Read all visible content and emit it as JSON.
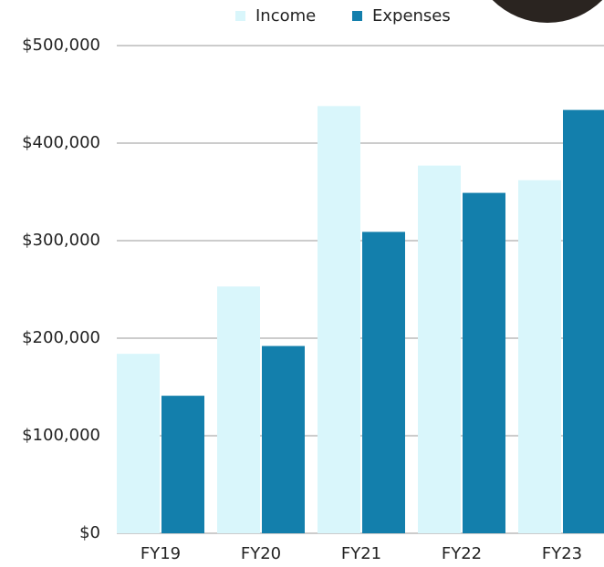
{
  "chart_data": {
    "type": "bar",
    "categories": [
      "FY19",
      "FY20",
      "FY21",
      "FY22",
      "FY23"
    ],
    "series": [
      {
        "name": "Income",
        "color": "#d9f6fb",
        "values": [
          184000,
          253000,
          438000,
          377000,
          362000
        ]
      },
      {
        "name": "Expenses",
        "color": "#137fac",
        "values": [
          141000,
          192000,
          309000,
          349000,
          434000
        ]
      }
    ],
    "ylim": [
      0,
      500000
    ],
    "yticks": [
      {
        "value": 0,
        "label": "$0"
      },
      {
        "value": 100000,
        "label": "$100,000"
      },
      {
        "value": 200000,
        "label": "$200,000"
      },
      {
        "value": 300000,
        "label": "$300,000"
      },
      {
        "value": 400000,
        "label": "$400,000"
      },
      {
        "value": 500000,
        "label": "$500,000"
      }
    ],
    "grid": true,
    "legend": "top"
  }
}
